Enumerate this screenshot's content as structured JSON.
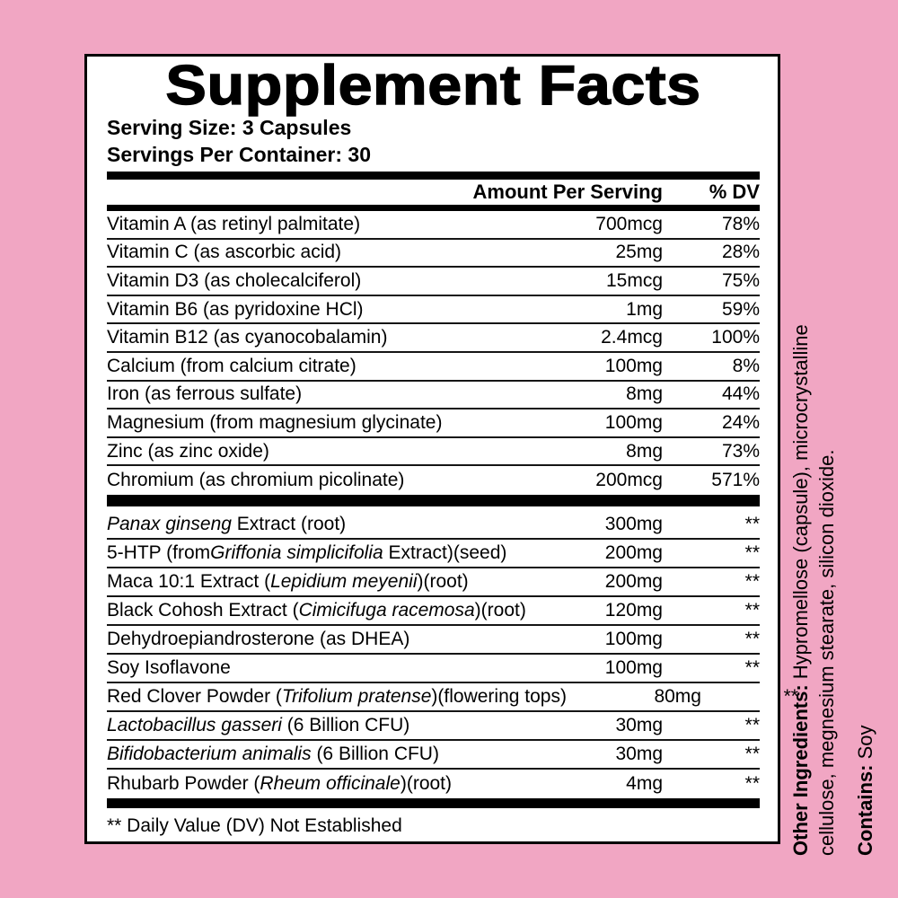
{
  "colors": {
    "background": "#F1A6C3",
    "panel_bg": "#FFFFFF",
    "ink": "#000000"
  },
  "label": {
    "title": "Supplement Facts",
    "serving_size": "Serving Size: 3 Capsules",
    "servings_per_container": "Servings Per Container: 30",
    "columns": {
      "amount": "Amount Per Serving",
      "dv": "% DV"
    },
    "nutrients": [
      {
        "name": "Vitamin A (as retinyl palmitate)",
        "amount": "700mcg",
        "dv": "78%"
      },
      {
        "name": "Vitamin C (as ascorbic acid)",
        "amount": "25mg",
        "dv": "28%"
      },
      {
        "name": "Vitamin D3 (as cholecalciferol)",
        "amount": "15mcg",
        "dv": "75%"
      },
      {
        "name": "Vitamin B6 (as pyridoxine HCl)",
        "amount": "1mg",
        "dv": "59%"
      },
      {
        "name": "Vitamin B12 (as cyanocobalamin)",
        "amount": "2.4mcg",
        "dv": "100%"
      },
      {
        "name": "Calcium (from calcium citrate)",
        "amount": "100mg",
        "dv": "8%"
      },
      {
        "name": "Iron (as ferrous sulfate)",
        "amount": "8mg",
        "dv": "44%"
      },
      {
        "name": "Magnesium (from magnesium glycinate)",
        "amount": "100mg",
        "dv": "24%"
      },
      {
        "name": "Zinc (as zinc oxide)",
        "amount": "8mg",
        "dv": "73%"
      },
      {
        "name": "Chromium (as chromium picolinate)",
        "amount": "200mcg",
        "dv": "571%"
      }
    ],
    "botanicals": [
      {
        "name": [
          {
            "t": "Panax ginseng",
            "i": true
          },
          {
            "t": " Extract (root)",
            "i": false
          }
        ],
        "amount": "300mg",
        "dv": "**"
      },
      {
        "name": [
          {
            "t": "5-HTP (from",
            "i": false
          },
          {
            "t": "Griffonia simplicifolia",
            "i": true
          },
          {
            "t": " Extract)(seed)",
            "i": false
          }
        ],
        "amount": "200mg",
        "dv": "**"
      },
      {
        "name": [
          {
            "t": "Maca 10:1 Extract (",
            "i": false
          },
          {
            "t": "Lepidium meyenii",
            "i": true
          },
          {
            "t": ")(root)",
            "i": false
          }
        ],
        "amount": "200mg",
        "dv": "**"
      },
      {
        "name": [
          {
            "t": "Black Cohosh Extract (",
            "i": false
          },
          {
            "t": "Cimicifuga racemosa",
            "i": true
          },
          {
            "t": ")(root)",
            "i": false
          }
        ],
        "amount": "120mg",
        "dv": "**"
      },
      {
        "name": [
          {
            "t": "Dehydroepiandrosterone (as DHEA)",
            "i": false
          }
        ],
        "amount": "100mg",
        "dv": "**"
      },
      {
        "name": [
          {
            "t": "Soy Isoflavone",
            "i": false
          }
        ],
        "amount": "100mg",
        "dv": "**"
      },
      {
        "name": [
          {
            "t": "Red Clover Powder (",
            "i": false
          },
          {
            "t": "Trifolium pratense",
            "i": true
          },
          {
            "t": ")(flowering tops)",
            "i": false
          }
        ],
        "amount": "80mg",
        "dv": "**"
      },
      {
        "name": [
          {
            "t": "Lactobacillus gasseri",
            "i": true
          },
          {
            "t": " (6 Billion CFU)",
            "i": false
          }
        ],
        "amount": "30mg",
        "dv": "**"
      },
      {
        "name": [
          {
            "t": "Bifidobacterium animalis",
            "i": true
          },
          {
            "t": " (6 Billion CFU)",
            "i": false
          }
        ],
        "amount": "30mg",
        "dv": "**"
      },
      {
        "name": [
          {
            "t": "Rhubarb Powder (",
            "i": false
          },
          {
            "t": "Rheum officinale",
            "i": true
          },
          {
            "t": ")(root)",
            "i": false
          }
        ],
        "amount": "4mg",
        "dv": "**"
      }
    ],
    "footnote": "** Daily Value (DV) Not Established"
  },
  "side_text": {
    "other_ingredients": {
      "label": "Other Ingredients:",
      "line1_rest": " Hypromellose (capsule), microcrystalline",
      "line2": "cellulose, megnesium stearate, silicon dioxide."
    },
    "contains": {
      "label": "Contains:",
      "value": " Soy"
    }
  }
}
